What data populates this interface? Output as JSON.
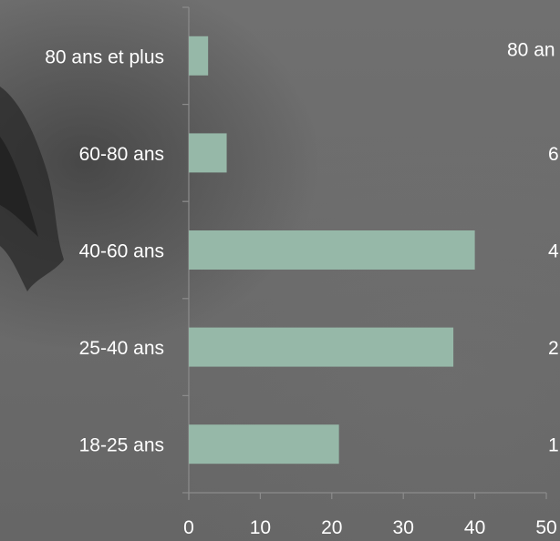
{
  "chart_data": {
    "type": "bar",
    "orientation": "horizontal",
    "categories": [
      "80 ans et plus",
      "60-80 ans",
      "40-60 ans",
      "25-40 ans",
      "18-25 ans"
    ],
    "values": [
      2.7,
      5.3,
      40,
      37,
      21
    ],
    "xlim": [
      0,
      50
    ],
    "xticks": [
      "0",
      "10",
      "20",
      "30",
      "40",
      "50"
    ],
    "bar_color": "#96b8a8",
    "axis_color": "#8c8c8c",
    "grid": false,
    "title": "",
    "xlabel": "",
    "ylabel": ""
  },
  "duplicate_chart_partial_labels": [
    "80 an",
    "6",
    "4",
    "2",
    "1"
  ],
  "background": {
    "base_color": "#6e6e6e",
    "dark_shape_color": "#2a2a2a"
  }
}
